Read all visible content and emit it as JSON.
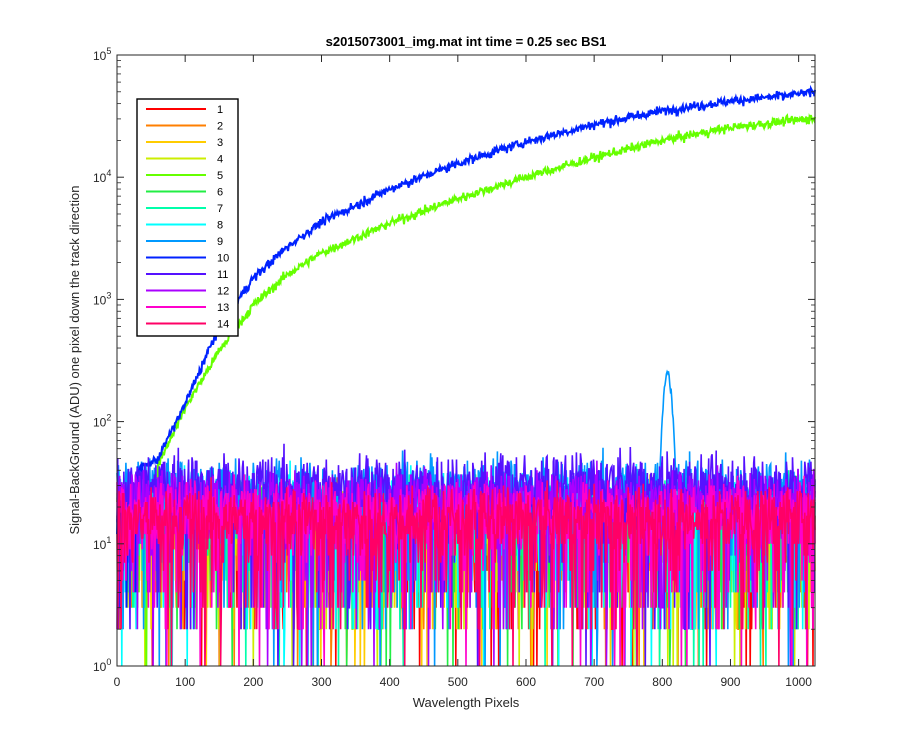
{
  "chart_data": {
    "type": "line",
    "title": "s2015073001_img.mat int time = 0.25 sec   BS1",
    "xlabel": "Wavelength Pixels",
    "ylabel": "Signal-BackGround (ADU) one pixel down the track direction",
    "xlim": [
      0,
      1024
    ],
    "ylim": [
      1,
      100000
    ],
    "yscale": "log",
    "x_ticks": [
      "0",
      "100",
      "200",
      "300",
      "400",
      "500",
      "600",
      "700",
      "800",
      "900",
      "1000"
    ],
    "y_ticks": [
      {
        "base": "10",
        "exp": "0"
      },
      {
        "base": "10",
        "exp": "1"
      },
      {
        "base": "10",
        "exp": "2"
      },
      {
        "base": "10",
        "exp": "3"
      },
      {
        "base": "10",
        "exp": "4"
      },
      {
        "base": "10",
        "exp": "5"
      }
    ],
    "legend_position": "top-left",
    "series": [
      {
        "name": "1",
        "color": "#ff0000",
        "kind": "noise",
        "level": 15
      },
      {
        "name": "2",
        "color": "#ff7f00",
        "kind": "noise",
        "level": 16
      },
      {
        "name": "3",
        "color": "#ffcc00",
        "kind": "noise",
        "level": 17
      },
      {
        "name": "4",
        "color": "#ccee00",
        "kind": "noise",
        "level": 18
      },
      {
        "name": "5",
        "color": "#66ff00",
        "kind": "signal",
        "start_x": 60,
        "points": [
          [
            60,
            45
          ],
          [
            100,
            130
          ],
          [
            150,
            380
          ],
          [
            200,
            900
          ],
          [
            250,
            1600
          ],
          [
            300,
            2400
          ],
          [
            400,
            4200
          ],
          [
            500,
            6700
          ],
          [
            600,
            10000
          ],
          [
            700,
            14500
          ],
          [
            800,
            20000
          ],
          [
            900,
            25500
          ],
          [
            1000,
            29500
          ],
          [
            1024,
            30500
          ]
        ]
      },
      {
        "name": "6",
        "color": "#22ee44",
        "kind": "noise",
        "level": 18
      },
      {
        "name": "7",
        "color": "#00ffaa",
        "kind": "noise",
        "level": 19
      },
      {
        "name": "8",
        "color": "#00ffff",
        "kind": "noise",
        "level": 22
      },
      {
        "name": "9",
        "color": "#0099ff",
        "kind": "noise_peak",
        "level": 28,
        "peak_x": 808,
        "peak_value": 250
      },
      {
        "name": "10",
        "color": "#0022ff",
        "kind": "signal",
        "start_x": 30,
        "points": [
          [
            30,
            40
          ],
          [
            60,
            50
          ],
          [
            100,
            140
          ],
          [
            150,
            600
          ],
          [
            200,
            1500
          ],
          [
            250,
            2700
          ],
          [
            300,
            4300
          ],
          [
            400,
            8000
          ],
          [
            500,
            13000
          ],
          [
            600,
            19500
          ],
          [
            700,
            27000
          ],
          [
            800,
            35000
          ],
          [
            900,
            42000
          ],
          [
            1000,
            48000
          ],
          [
            1024,
            50000
          ]
        ]
      },
      {
        "name": "11",
        "color": "#5511ff",
        "kind": "noise",
        "level": 30
      },
      {
        "name": "12",
        "color": "#aa00ff",
        "kind": "noise",
        "level": 22
      },
      {
        "name": "13",
        "color": "#ff00cc",
        "kind": "noise",
        "level": 18
      },
      {
        "name": "14",
        "color": "#ff0066",
        "kind": "noise",
        "level": 16
      }
    ]
  }
}
